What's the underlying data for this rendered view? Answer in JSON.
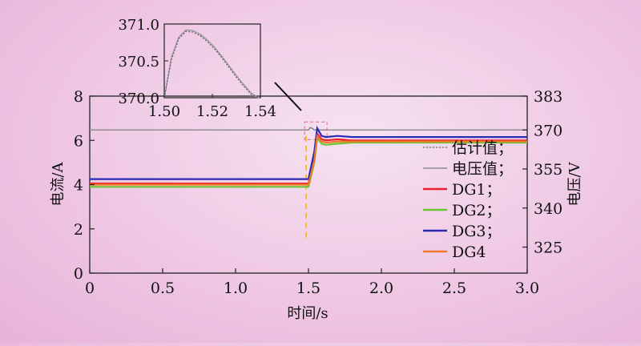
{
  "chart_data": {
    "type": "line",
    "xlabel": "时间/s",
    "ylabel_left": "电流/A",
    "ylabel_right": "电压/V",
    "xlim": [
      0,
      3.0
    ],
    "ylim_left": [
      0,
      8
    ],
    "ylim_right": [
      315,
      383
    ],
    "x_ticks": [
      "0",
      "0.5",
      "1.0",
      "1.5",
      "2.0",
      "2.5",
      "3.0"
    ],
    "y_left_ticks": [
      "0",
      "2",
      "4",
      "6",
      "8"
    ],
    "y_right_ticks": [
      "325",
      "340",
      "355",
      "370",
      "383"
    ],
    "legend_position": "right",
    "step_time": 1.5,
    "series": [
      {
        "name": "估计值；",
        "axis": "right",
        "color": "#7a7a7a",
        "style": "dotted",
        "x": [
          0,
          1.5,
          1.52,
          1.54,
          1.56,
          3.0
        ],
        "y": [
          370,
          370,
          370.8,
          370,
          370,
          370
        ]
      },
      {
        "name": "电压值；",
        "axis": "right",
        "color": "#8c8c8c",
        "style": "solid",
        "x": [
          0,
          1.5,
          1.51,
          1.52,
          1.53,
          1.54,
          1.55,
          3.0
        ],
        "y": [
          370,
          370,
          370.9,
          370.8,
          370.5,
          370,
          370,
          370
        ]
      },
      {
        "name": "DG1；",
        "axis": "left",
        "color": "#e8202a",
        "style": "solid",
        "x": [
          0,
          1.5,
          1.54,
          1.56,
          1.59,
          1.62,
          1.7,
          1.8,
          3.0
        ],
        "y": [
          4.05,
          4.05,
          5.2,
          6.3,
          6.05,
          6.0,
          6.05,
          6.0,
          6.0
        ]
      },
      {
        "name": "DG2；",
        "axis": "left",
        "color": "#6cc432",
        "style": "solid",
        "x": [
          0,
          1.5,
          1.54,
          1.56,
          1.59,
          1.62,
          1.7,
          1.8,
          3.0
        ],
        "y": [
          3.9,
          3.9,
          5.0,
          6.1,
          5.85,
          5.8,
          5.85,
          5.9,
          5.9
        ]
      },
      {
        "name": "DG3；",
        "axis": "left",
        "color": "#2a2ab4",
        "style": "solid",
        "x": [
          0,
          1.5,
          1.54,
          1.56,
          1.59,
          1.62,
          1.7,
          1.8,
          3.0
        ],
        "y": [
          4.25,
          4.25,
          5.5,
          6.55,
          6.2,
          6.15,
          6.2,
          6.15,
          6.15
        ]
      },
      {
        "name": "DG4",
        "axis": "left",
        "color": "#f0782a",
        "style": "solid",
        "x": [
          0,
          1.5,
          1.54,
          1.56,
          1.59,
          1.62,
          1.7,
          1.8,
          3.0
        ],
        "y": [
          4.0,
          4.0,
          5.1,
          6.2,
          5.95,
          5.9,
          5.95,
          5.95,
          5.95
        ]
      }
    ],
    "inset": {
      "xlim": [
        1.5,
        1.54
      ],
      "ylim": [
        370.0,
        371.0
      ],
      "x_ticks": [
        "1.50",
        "1.52",
        "1.54"
      ],
      "y_ticks": [
        "370.0",
        "370.5",
        "371.0"
      ],
      "series": [
        {
          "name": "电压值；",
          "color": "#9a9a9a",
          "style": "solid",
          "x": [
            1.5,
            1.503,
            1.506,
            1.509,
            1.512,
            1.515,
            1.518,
            1.521,
            1.524,
            1.527,
            1.53,
            1.533,
            1.536,
            1.539,
            1.54
          ],
          "y": [
            370.0,
            370.55,
            370.82,
            370.92,
            370.91,
            370.86,
            370.78,
            370.68,
            370.56,
            370.43,
            370.3,
            370.18,
            370.07,
            370.0,
            370.0
          ]
        },
        {
          "name": "估计值；",
          "color": "#6a6a6a",
          "style": "dotted",
          "x": [
            1.5,
            1.503,
            1.506,
            1.509,
            1.512,
            1.515,
            1.518,
            1.521,
            1.524,
            1.527,
            1.53,
            1.533,
            1.536,
            1.539,
            1.54
          ],
          "y": [
            370.0,
            370.52,
            370.8,
            370.9,
            370.89,
            370.84,
            370.76,
            370.66,
            370.54,
            370.41,
            370.28,
            370.16,
            370.05,
            370.0,
            370.0
          ]
        }
      ]
    }
  }
}
